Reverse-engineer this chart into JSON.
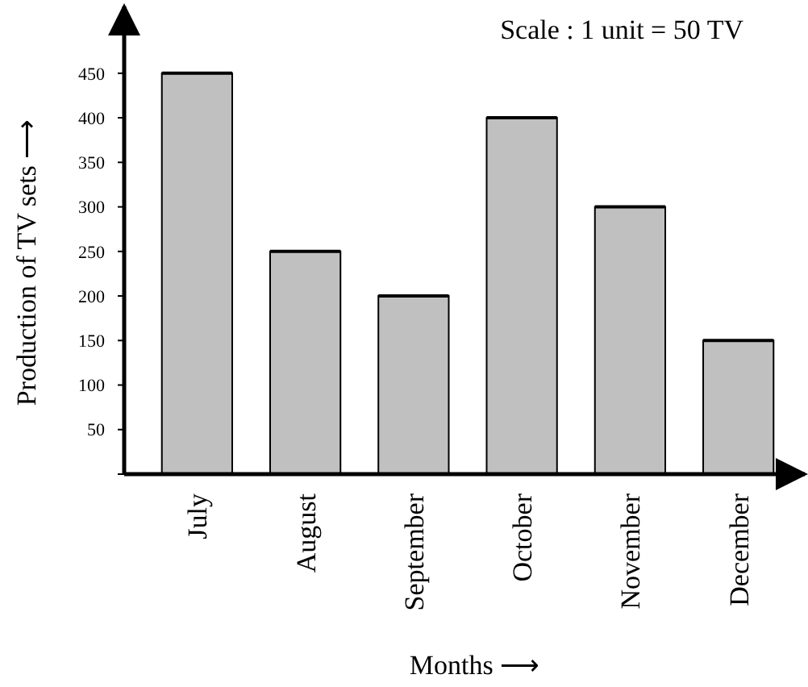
{
  "chart_data": {
    "type": "bar",
    "ylabel": "Production of TV sets ⟶",
    "xlabel": "Months ⟶",
    "annotations": [
      "Scale : 1 unit = 50 TV"
    ],
    "categories": [
      "July",
      "August",
      "September",
      "October",
      "November",
      "December"
    ],
    "values": [
      450,
      250,
      200,
      400,
      300,
      150
    ],
    "color": "#c0c0c0",
    "ylim": [
      0,
      525
    ],
    "yticks": [
      {
        "value": 0,
        "label": null
      },
      50,
      100,
      150,
      200,
      250,
      300,
      350,
      400,
      450
    ],
    "grid": false
  }
}
